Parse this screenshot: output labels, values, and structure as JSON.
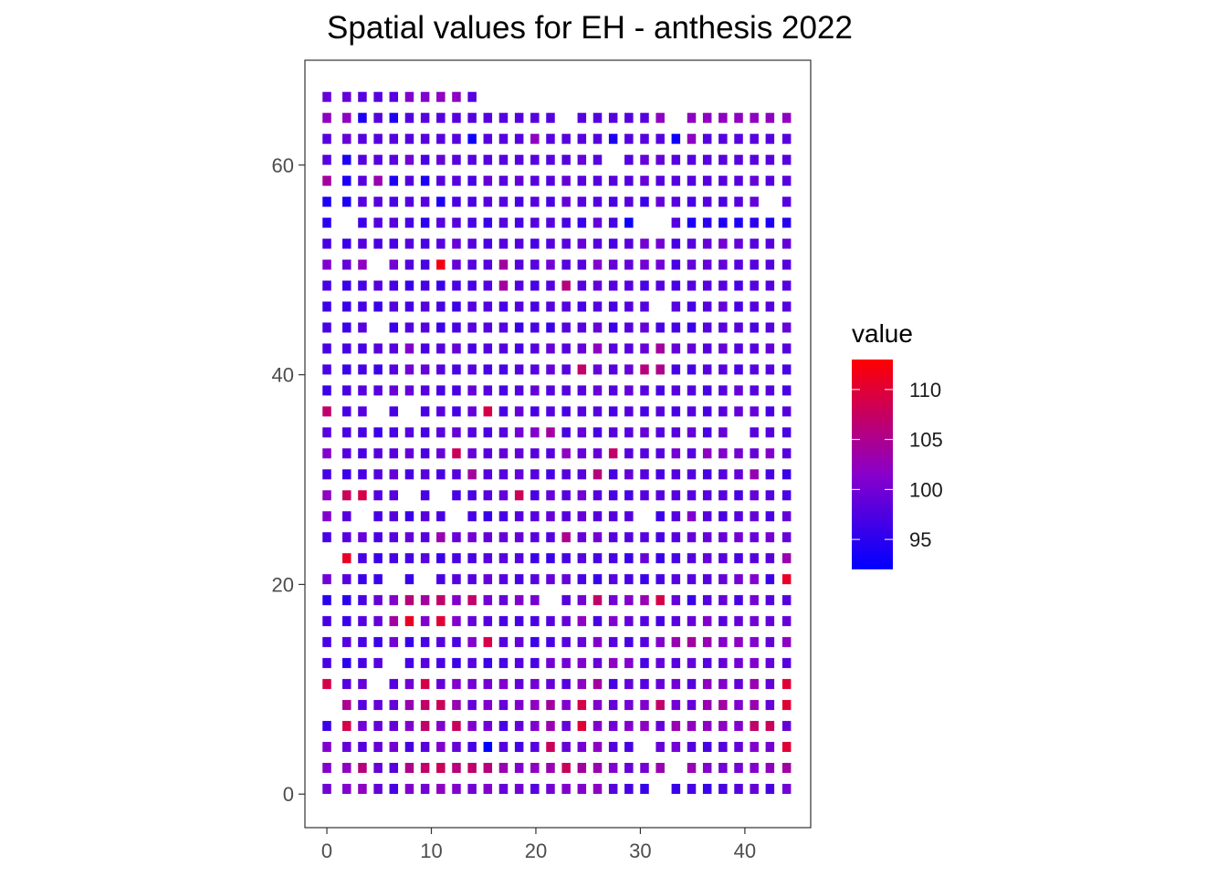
{
  "chart_data": {
    "type": "heatmap",
    "title": "Spatial values for EH - anthesis 2022",
    "xlabel": "",
    "ylabel": "",
    "xlim": [
      -2.1,
      46.3
    ],
    "ylim": [
      -3.2,
      70.0
    ],
    "x_ticks": [
      0,
      10,
      20,
      30,
      40
    ],
    "y_ticks": [
      0,
      20,
      40,
      60
    ],
    "grid": false,
    "legend": {
      "title": "value",
      "position": "right",
      "range": [
        92,
        113
      ],
      "ticks": [
        95,
        100,
        105,
        110
      ],
      "low_color": "#0000ff",
      "mid_color": "#8800cc",
      "high_color": "#ff0000"
    },
    "x_positions": [
      0.0,
      1.9,
      3.4,
      4.9,
      6.4,
      7.9,
      9.4,
      10.9,
      12.4,
      13.9,
      15.4,
      16.9,
      18.4,
      19.9,
      21.4,
      22.9,
      24.4,
      25.9,
      27.4,
      28.9,
      30.4,
      31.9,
      33.4,
      34.9,
      36.4,
      37.9,
      39.4,
      40.9,
      42.4,
      44.0
    ],
    "y_positions": [
      0.5,
      2.5,
      4.5,
      6.5,
      8.5,
      10.5,
      12.5,
      14.5,
      16.5,
      18.5,
      20.5,
      22.5,
      24.5,
      26.5,
      28.5,
      30.5,
      32.5,
      34.5,
      36.5,
      38.5,
      40.5,
      42.5,
      44.5,
      46.5,
      48.5,
      50.5,
      52.5,
      54.5,
      56.5,
      58.5,
      60.5,
      62.5,
      64.5,
      66.5
    ],
    "row_values": [
      [
        100,
        101,
        102,
        99,
        97,
        101,
        100,
        102,
        101,
        100,
        101,
        99,
        100,
        98,
        100,
        101,
        101,
        102,
        98,
        97,
        96,
        null,
        96,
        97,
        96,
        97,
        98,
        99,
        97,
        100
      ],
      [
        101,
        102,
        106,
        99,
        98,
        105,
        107,
        108,
        106,
        107,
        106,
        103,
        101,
        102,
        103,
        108,
        104,
        103,
        101,
        99,
        100,
        103,
        null,
        103,
        101,
        100,
        100,
        101,
        102,
        104
      ],
      [
        101,
        99,
        98,
        99,
        100,
        97,
        98,
        101,
        99,
        97,
        92,
        98,
        97,
        98,
        108,
        99,
        100,
        102,
        98,
        97,
        null,
        99,
        100,
        98,
        97,
        98,
        99,
        101,
        100,
        110
      ],
      [
        96,
        109,
        100,
        99,
        99,
        101,
        107,
        101,
        108,
        101,
        100,
        97,
        99,
        101,
        103,
        99,
        110,
        101,
        100,
        101,
        102,
        99,
        103,
        102,
        102,
        102,
        101,
        107,
        108,
        99
      ],
      [
        null,
        105,
        98,
        99,
        99,
        103,
        107,
        108,
        103,
        99,
        101,
        99,
        101,
        102,
        104,
        101,
        109,
        101,
        99,
        100,
        101,
        107,
        100,
        99,
        103,
        104,
        101,
        103,
        99,
        110
      ],
      [
        109,
        98,
        99,
        null,
        98,
        100,
        109,
        99,
        101,
        100,
        100,
        101,
        99,
        100,
        99,
        98,
        102,
        104,
        97,
        99,
        98,
        99,
        100,
        98,
        102,
        101,
        99,
        103,
        99,
        110
      ],
      [
        97,
        95,
        97,
        98,
        null,
        97,
        98,
        97,
        96,
        98,
        96,
        97,
        98,
        97,
        100,
        100,
        101,
        99,
        102,
        101,
        97,
        99,
        98,
        99,
        98,
        99,
        100,
        101,
        99,
        98
      ],
      [
        97,
        98,
        97,
        96,
        100,
        96,
        97,
        98,
        97,
        101,
        109,
        98,
        99,
        96,
        97,
        98,
        99,
        101,
        98,
        97,
        98,
        101,
        103,
        104,
        103,
        101,
        102,
        101,
        99,
        102
      ],
      [
        97,
        96,
        98,
        99,
        104,
        111,
        101,
        110,
        101,
        99,
        98,
        97,
        97,
        97,
        98,
        99,
        102,
        97,
        101,
        99,
        98,
        97,
        98,
        99,
        101,
        98,
        99,
        100,
        99,
        99
      ],
      [
        95,
        95,
        97,
        99,
        101,
        106,
        104,
        107,
        101,
        107,
        100,
        99,
        101,
        100,
        null,
        98,
        100,
        107,
        100,
        101,
        103,
        109,
        99,
        96,
        98,
        99,
        97,
        100,
        98,
        98
      ],
      [
        100,
        98,
        96,
        96,
        null,
        96,
        null,
        97,
        98,
        98,
        99,
        98,
        97,
        98,
        99,
        99,
        97,
        96,
        98,
        97,
        96,
        97,
        98,
        98,
        98,
        99,
        100,
        101,
        96,
        111
      ],
      [
        null,
        111,
        97,
        96,
        97,
        97,
        98,
        96,
        97,
        97,
        98,
        98,
        98,
        96,
        96,
        97,
        98,
        97,
        97,
        96,
        99,
        96,
        97,
        98,
        99,
        98,
        97,
        98,
        98,
        103
      ],
      [
        97,
        98,
        99,
        97,
        98,
        99,
        98,
        103,
        99,
        100,
        99,
        99,
        99,
        98,
        98,
        105,
        99,
        100,
        98,
        98,
        98,
        97,
        98,
        99,
        99,
        99,
        100,
        99,
        100,
        99
      ],
      [
        101,
        98,
        null,
        97,
        98,
        96,
        98,
        97,
        null,
        97,
        96,
        97,
        98,
        98,
        99,
        98,
        99,
        98,
        98,
        98,
        null,
        96,
        98,
        101,
        98,
        97,
        98,
        99,
        97,
        99
      ],
      [
        102,
        108,
        109,
        98,
        98,
        null,
        97,
        null,
        97,
        97,
        98,
        99,
        108,
        97,
        99,
        98,
        100,
        98,
        97,
        97,
        98,
        98,
        98,
        98,
        98,
        98,
        97,
        99,
        98,
        97
      ],
      [
        97,
        96,
        97,
        98,
        99,
        97,
        98,
        97,
        98,
        104,
        98,
        98,
        99,
        98,
        97,
        98,
        98,
        106,
        97,
        99,
        98,
        97,
        98,
        98,
        97,
        98,
        99,
        103,
        97,
        96
      ],
      [
        101,
        98,
        97,
        98,
        98,
        99,
        97,
        99,
        108,
        99,
        98,
        99,
        99,
        98,
        98,
        102,
        99,
        99,
        107,
        98,
        98,
        98,
        100,
        98,
        102,
        101,
        100,
        99,
        101,
        98
      ],
      [
        98,
        97,
        97,
        96,
        97,
        98,
        97,
        98,
        99,
        98,
        97,
        98,
        100,
        101,
        104,
        97,
        99,
        97,
        98,
        98,
        99,
        98,
        98,
        99,
        97,
        99,
        null,
        98,
        98,
        97
      ],
      [
        107,
        97,
        98,
        null,
        97,
        null,
        97,
        98,
        97,
        99,
        109,
        97,
        99,
        97,
        98,
        97,
        98,
        98,
        97,
        98,
        97,
        98,
        97,
        98,
        97,
        98,
        99,
        99,
        97,
        98
      ],
      [
        96,
        97,
        98,
        98,
        99,
        99,
        98,
        97,
        97,
        99,
        98,
        97,
        98,
        99,
        98,
        98,
        98,
        99,
        98,
        99,
        98,
        97,
        98,
        98,
        97,
        98,
        99,
        98,
        98,
        97
      ],
      [
        97,
        96,
        97,
        96,
        98,
        100,
        99,
        98,
        97,
        98,
        97,
        97,
        98,
        98,
        99,
        98,
        107,
        99,
        98,
        99,
        106,
        105,
        97,
        97,
        98,
        98,
        97,
        98,
        98,
        97
      ],
      [
        97,
        97,
        97,
        98,
        98,
        101,
        97,
        98,
        99,
        97,
        98,
        98,
        97,
        98,
        99,
        98,
        99,
        102,
        98,
        98,
        99,
        104,
        99,
        99,
        98,
        99,
        98,
        98,
        99,
        98
      ],
      [
        97,
        96,
        98,
        null,
        96,
        98,
        98,
        96,
        97,
        98,
        98,
        98,
        96,
        97,
        96,
        98,
        98,
        99,
        96,
        98,
        99,
        97,
        97,
        96,
        98,
        98,
        98,
        97,
        98,
        99
      ],
      [
        96,
        96,
        97,
        96,
        98,
        97,
        98,
        97,
        96,
        98,
        98,
        97,
        98,
        97,
        98,
        98,
        97,
        98,
        97,
        98,
        98,
        null,
        98,
        97,
        98,
        99,
        97,
        98,
        98,
        98
      ],
      [
        97,
        96,
        97,
        98,
        97,
        96,
        97,
        96,
        97,
        97,
        98,
        104,
        98,
        97,
        98,
        106,
        98,
        99,
        98,
        98,
        97,
        98,
        97,
        98,
        98,
        98,
        97,
        98,
        98,
        98
      ],
      [
        101,
        99,
        102,
        null,
        100,
        98,
        97,
        112,
        99,
        98,
        98,
        104,
        98,
        98,
        100,
        98,
        98,
        101,
        99,
        99,
        100,
        100,
        97,
        99,
        99,
        99,
        98,
        98,
        98,
        98
      ],
      [
        97,
        96,
        98,
        97,
        97,
        98,
        97,
        98,
        99,
        98,
        97,
        98,
        98,
        97,
        98,
        98,
        99,
        98,
        97,
        98,
        100,
        100,
        97,
        98,
        99,
        100,
        99,
        98,
        98,
        99
      ],
      [
        95,
        null,
        96,
        98,
        98,
        97,
        95,
        98,
        98,
        97,
        96,
        98,
        97,
        98,
        98,
        97,
        96,
        99,
        97,
        93,
        null,
        null,
        98,
        94,
        95,
        94,
        94,
        95,
        94,
        95
      ],
      [
        94,
        94,
        98,
        98,
        97,
        98,
        98,
        94,
        97,
        97,
        98,
        98,
        97,
        98,
        97,
        99,
        98,
        98,
        97,
        98,
        96,
        99,
        98,
        97,
        98,
        97,
        98,
        99,
        null,
        98
      ],
      [
        104,
        94,
        98,
        103,
        94,
        98,
        94,
        98,
        98,
        97,
        99,
        98,
        99,
        98,
        98,
        99,
        98,
        98,
        98,
        98,
        99,
        98,
        98,
        98,
        98,
        98,
        98,
        99,
        98,
        98
      ],
      [
        98,
        94,
        98,
        98,
        98,
        100,
        97,
        99,
        98,
        98,
        98,
        98,
        98,
        98,
        98,
        98,
        99,
        98,
        null,
        98,
        99,
        99,
        98,
        98,
        98,
        98,
        98,
        98,
        98,
        98
      ],
      [
        98,
        99,
        98,
        98,
        98,
        98,
        98,
        98,
        98,
        93,
        98,
        98,
        98,
        102,
        98,
        98,
        98,
        98,
        94,
        98,
        98,
        98,
        93,
        102,
        98,
        98,
        98,
        98,
        98,
        98
      ],
      [
        102,
        102,
        94,
        98,
        94,
        98,
        98,
        98,
        98,
        98,
        98,
        98,
        98,
        98,
        98,
        null,
        98,
        98,
        98,
        98,
        98,
        102,
        null,
        102,
        102,
        102,
        102,
        102,
        102,
        102
      ],
      [
        99,
        99,
        98,
        98,
        98,
        101,
        101,
        102,
        102,
        98,
        null,
        null,
        null,
        null,
        null,
        null,
        null,
        null,
        null,
        null,
        null,
        null,
        null,
        null,
        null,
        null,
        null,
        null,
        null,
        null
      ]
    ]
  }
}
